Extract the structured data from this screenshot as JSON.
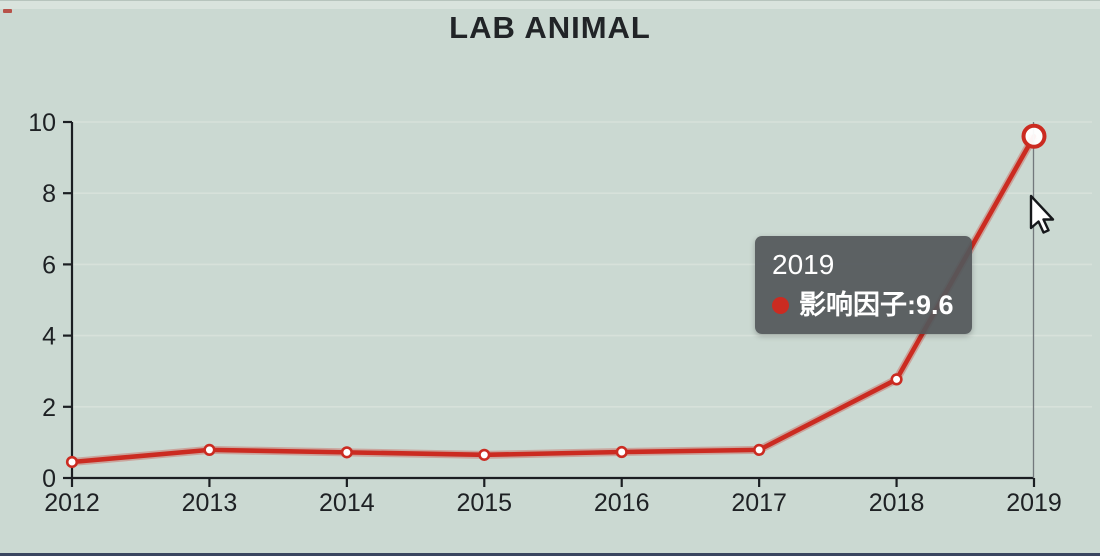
{
  "window": {
    "title": "LAB ANIMAL"
  },
  "colors": {
    "page_background": "#cbd9d2",
    "top_strip": "#d9e3dd",
    "axis": "#1b1e22",
    "tick_label": "#1e2124",
    "gridline": "#d7e1da",
    "series_red": "#cb2b21",
    "marker_fill": "#ffffff",
    "crosshair": "#72787c",
    "tooltip_background": "#53575a",
    "tooltip_text": "#ffffff",
    "bottom_bar": "#39455f"
  },
  "chart_data": {
    "type": "line",
    "title": "LAB ANIMAL",
    "categories": [
      "2012",
      "2013",
      "2014",
      "2015",
      "2016",
      "2017",
      "2018",
      "2019"
    ],
    "series": [
      {
        "name": "影响因子",
        "values": [
          0.45,
          0.79,
          0.72,
          0.65,
          0.73,
          0.79,
          2.77,
          9.6
        ]
      }
    ],
    "xlabel": "",
    "ylabel": "",
    "ylim": [
      0,
      10
    ],
    "yticks": [
      0,
      2,
      4,
      6,
      8,
      10
    ],
    "grid": "faint-horizontal",
    "legend_position": "none",
    "marker_style": "open-circle",
    "active_point": {
      "category": "2019",
      "series": "影响因子",
      "value": 9.6
    }
  },
  "tooltip": {
    "title": "2019",
    "series_label": "影响因子",
    "separator": ": ",
    "value": "9.6"
  }
}
